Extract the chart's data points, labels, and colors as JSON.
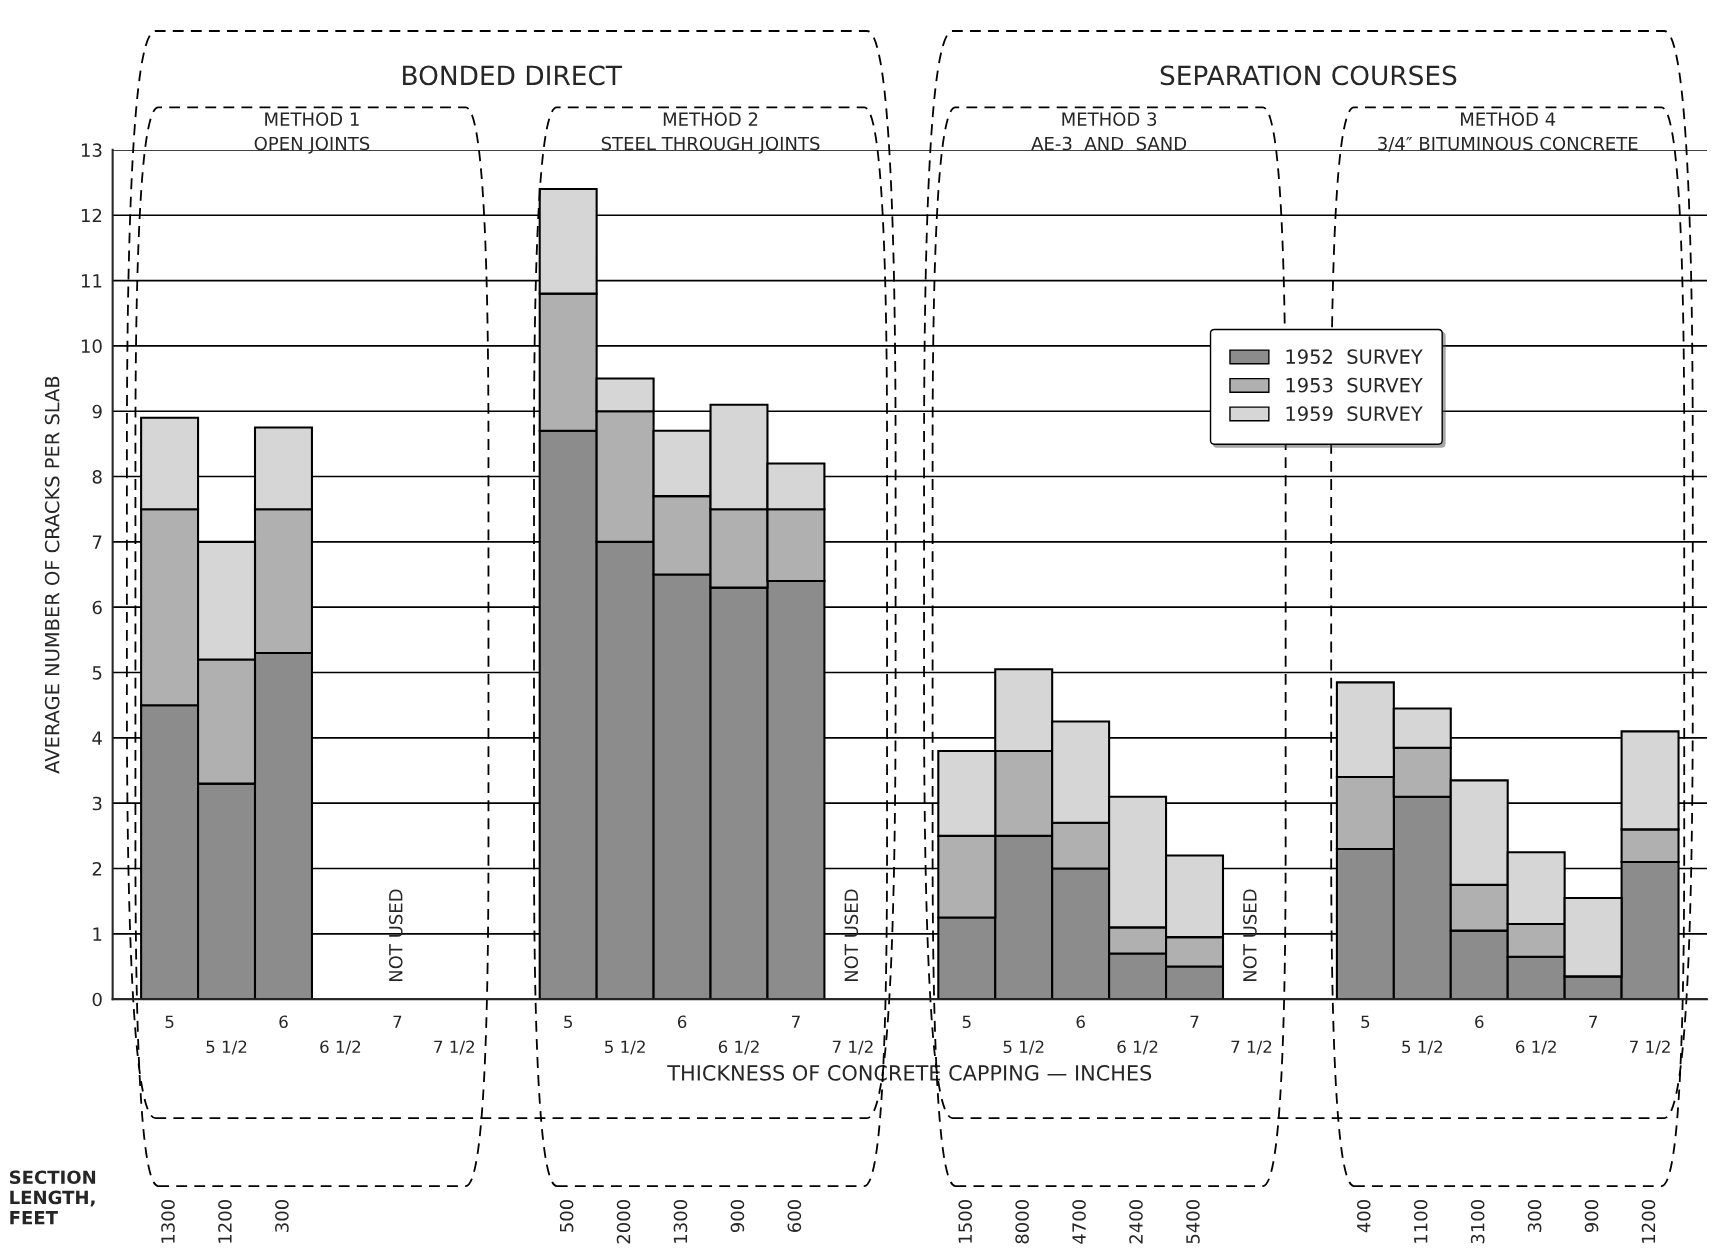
{
  "chart_data": {
    "type": "bar",
    "stacked": true,
    "ylabel": "AVERAGE NUMBER OF CRACKS PER SLAB",
    "xlabel": "THICKNESS OF CONCRETE CAPPING — INCHES",
    "categories": [
      "5",
      "5 1/2",
      "6",
      "6 1/2",
      "7",
      "7 1/2",
      "5",
      "5 1/2",
      "6",
      "6 1/2",
      "7",
      "7 1/2",
      "5",
      "5 1/2",
      "6",
      "6 1/2",
      "7",
      "7 1/2",
      "5",
      "5 1/2",
      "6",
      "6 1/2",
      "7",
      "7 1/2"
    ],
    "series": [
      {
        "name": "1952  SURVEY",
        "color": "#8c8c8c",
        "values": [
          4.5,
          3.3,
          5.3,
          null,
          null,
          null,
          8.7,
          7.0,
          6.5,
          6.3,
          6.4,
          null,
          1.25,
          2.5,
          2.0,
          0.7,
          0.5,
          null,
          2.3,
          3.1,
          1.05,
          0.65,
          0.35,
          2.1
        ]
      },
      {
        "name": "1953  SURVEY",
        "color": "#b0b0b0",
        "values": [
          3.0,
          1.9,
          2.2,
          null,
          null,
          null,
          2.1,
          2.0,
          1.2,
          1.2,
          1.1,
          null,
          1.25,
          1.3,
          0.7,
          0.4,
          0.45,
          null,
          1.1,
          0.75,
          0.7,
          0.5,
          0,
          0.5
        ]
      },
      {
        "name": "1959  SURVEY",
        "color": "#d6d6d6",
        "values": [
          1.4,
          1.8,
          1.25,
          null,
          null,
          null,
          1.6,
          0.5,
          1.0,
          1.6,
          0.7,
          null,
          1.3,
          1.25,
          1.55,
          2.0,
          1.25,
          null,
          1.45,
          0.6,
          1.6,
          1.1,
          1.2,
          1.5
        ]
      }
    ],
    "ylim": [
      0,
      13
    ],
    "yticks": [
      0,
      1,
      2,
      3,
      4,
      5,
      6,
      7,
      8,
      9,
      10,
      11,
      12,
      13
    ],
    "grid": "y",
    "legend": "top right",
    "annotations": [
      "BONDED DIRECT",
      "SEPARATION COURSES",
      "METHOD 1\nOPEN JOINTS",
      "METHOD 2\nSTEEL THROUGH JOINTS",
      "METHOD 3\nAE-3  AND  SAND",
      "METHOD 4\n3/4″ BITUMINOUS CONCRETE",
      "NOT USED",
      "NOT USED",
      "NOT USED",
      "SECTION\nLENGTH,\nFEET",
      "1300",
      "1200",
      "300",
      "500",
      "2000",
      "1300",
      "900",
      "600",
      "1500",
      "8000",
      "4700",
      "2400",
      "5400",
      "400",
      "1100",
      "3100",
      "300",
      "900",
      "1200"
    ]
  }
}
